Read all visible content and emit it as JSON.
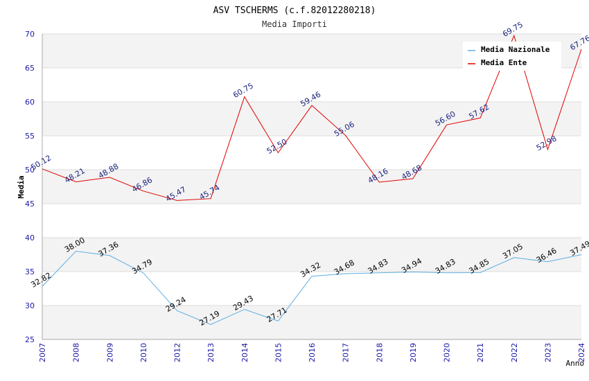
{
  "chart_data": {
    "type": "line",
    "title": "ASV TSCHERMS (c.f.82012280218)",
    "subtitle": "Media Importi",
    "xlabel": "Anno",
    "ylabel": "Media",
    "ylim": [
      25,
      70
    ],
    "yticks": [
      25,
      30,
      35,
      40,
      45,
      50,
      55,
      60,
      65,
      70
    ],
    "grid": "horizontal bands",
    "legend_position": "top-right",
    "categories": [
      "2007",
      "2008",
      "2009",
      "2010",
      "2012",
      "2013",
      "2014",
      "2015",
      "2016",
      "2017",
      "2018",
      "2019",
      "2020",
      "2021",
      "2022",
      "2023",
      "2024"
    ],
    "series": [
      {
        "name": "Media Nazionale",
        "color": "#5dade2",
        "label_color": "#000000",
        "values": [
          32.82,
          38.0,
          37.36,
          34.79,
          29.24,
          27.19,
          29.43,
          27.71,
          34.32,
          34.68,
          34.83,
          34.94,
          34.83,
          34.85,
          37.05,
          36.46,
          37.49
        ],
        "labels": [
          "32.82",
          "38.00",
          "37.36",
          "34.79",
          "29.24",
          "27.19",
          "29.43",
          "27.71",
          "34.32",
          "34.68",
          "34.83",
          "34.94",
          "34.83",
          "34.85",
          "37.05",
          "36.46",
          "37.49"
        ]
      },
      {
        "name": "Media Ente",
        "color": "#e00000",
        "label_color": "#1a237e",
        "values": [
          50.12,
          48.21,
          48.88,
          46.86,
          45.47,
          45.74,
          60.75,
          52.5,
          59.46,
          55.06,
          48.16,
          48.68,
          56.6,
          57.62,
          69.75,
          52.98,
          67.76
        ],
        "labels": [
          "50.12",
          "48.21",
          "48.88",
          "46.86",
          "45.47",
          "45.74",
          "60.75",
          "52.50",
          "59.46",
          "55.06",
          "48.16",
          "48.68",
          "56.60",
          "57.62",
          "69.75",
          "52.98",
          "67.76"
        ]
      }
    ],
    "colors": {
      "axis_ticks": "#1a1aa6",
      "band": "#f3f3f3",
      "gridline": "#dddddd",
      "axis": "#aaaaaa"
    }
  }
}
